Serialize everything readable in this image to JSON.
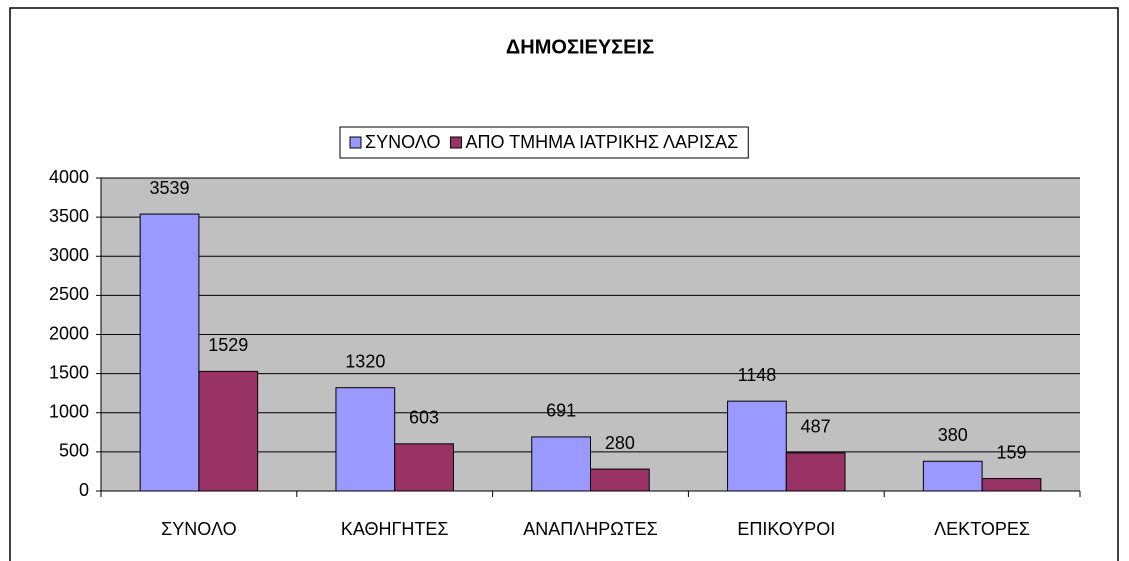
{
  "chart_data": {
    "type": "bar",
    "title": "ΔΗΜΟΣΙΕΥΣΕΙΣ",
    "categories": [
      "ΣΥΝΟΛΟ",
      "ΚΑΘΗΓΗΤΕΣ",
      "ΑΝΑΠΛΗΡΩΤΕΣ",
      "ΕΠΙΚΟΥΡΟΙ",
      "ΛΕΚΤΟΡΕΣ"
    ],
    "series": [
      {
        "name": "ΣΥΝΟΛΟ",
        "color": "#9999ff",
        "values": [
          3539,
          1320,
          691,
          1148,
          380
        ]
      },
      {
        "name": "ΑΠΟ ΤΜΗΜΑ ΙΑΤΡΙΚΗΣ ΛΑΡΙΣΑΣ",
        "color": "#993366",
        "values": [
          1529,
          603,
          280,
          487,
          159
        ]
      }
    ],
    "ylim": [
      0,
      4000
    ],
    "yticks": [
      0,
      500,
      1000,
      1500,
      2000,
      2500,
      3000,
      3500,
      4000
    ],
    "grid": true,
    "legend": "top"
  }
}
